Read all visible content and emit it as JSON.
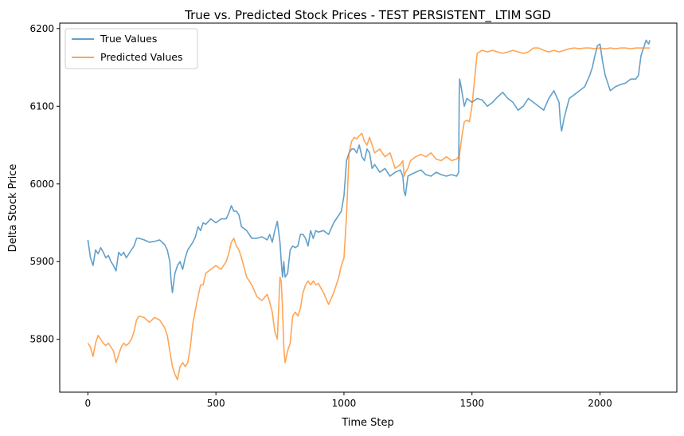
{
  "chart_data": {
    "type": "line",
    "title": "True vs. Predicted Stock Prices - TEST PERSISTENT_ LTIM SGD",
    "xlabel": "Time Step",
    "ylabel": "Delta Stock Price",
    "xlim": [
      -110,
      2300
    ],
    "ylim": [
      5732,
      6207
    ],
    "xticks": [
      0,
      500,
      1000,
      1500,
      2000
    ],
    "yticks": [
      5800,
      5900,
      6000,
      6100,
      6200
    ],
    "grid": false,
    "legend": "top-left",
    "series": [
      {
        "name": "True Values",
        "color": "#1f77b4",
        "x": [
          0,
          10,
          20,
          30,
          40,
          50,
          60,
          70,
          80,
          90,
          100,
          110,
          120,
          130,
          140,
          150,
          160,
          170,
          180,
          190,
          200,
          220,
          240,
          260,
          280,
          300,
          310,
          320,
          325,
          330,
          340,
          350,
          360,
          370,
          380,
          390,
          400,
          410,
          420,
          430,
          440,
          450,
          460,
          480,
          500,
          520,
          540,
          550,
          560,
          570,
          580,
          590,
          600,
          620,
          640,
          660,
          680,
          700,
          710,
          720,
          730,
          740,
          750,
          755,
          760,
          765,
          770,
          780,
          790,
          800,
          810,
          820,
          830,
          840,
          850,
          860,
          870,
          880,
          890,
          900,
          920,
          940,
          960,
          980,
          990,
          1000,
          1010,
          1020,
          1030,
          1040,
          1050,
          1060,
          1070,
          1080,
          1090,
          1100,
          1110,
          1120,
          1140,
          1160,
          1180,
          1200,
          1220,
          1230,
          1235,
          1240,
          1250,
          1260,
          1280,
          1300,
          1320,
          1340,
          1360,
          1380,
          1400,
          1420,
          1440,
          1448,
          1450,
          1452,
          1460,
          1470,
          1480,
          1500,
          1520,
          1540,
          1560,
          1580,
          1600,
          1620,
          1640,
          1660,
          1680,
          1700,
          1720,
          1740,
          1760,
          1780,
          1800,
          1820,
          1840,
          1845,
          1850,
          1860,
          1880,
          1900,
          1920,
          1940,
          1960,
          1970,
          1980,
          1990,
          2000,
          2010,
          2020,
          2040,
          2060,
          2080,
          2100,
          2120,
          2140,
          2150,
          2160,
          2170,
          2180,
          2190,
          2195
        ],
        "y": [
          5928,
          5905,
          5895,
          5915,
          5910,
          5918,
          5912,
          5905,
          5908,
          5900,
          5895,
          5888,
          5912,
          5908,
          5912,
          5905,
          5910,
          5915,
          5920,
          5930,
          5930,
          5928,
          5925,
          5926,
          5928,
          5922,
          5915,
          5900,
          5875,
          5860,
          5885,
          5895,
          5900,
          5890,
          5905,
          5915,
          5920,
          5925,
          5932,
          5945,
          5940,
          5950,
          5948,
          5955,
          5950,
          5955,
          5955,
          5962,
          5972,
          5965,
          5965,
          5960,
          5945,
          5940,
          5930,
          5930,
          5932,
          5928,
          5935,
          5925,
          5940,
          5952,
          5925,
          5900,
          5880,
          5900,
          5880,
          5885,
          5915,
          5920,
          5918,
          5920,
          5935,
          5935,
          5930,
          5920,
          5940,
          5930,
          5940,
          5938,
          5940,
          5935,
          5950,
          5960,
          5965,
          5985,
          6030,
          6040,
          6045,
          6045,
          6040,
          6050,
          6035,
          6030,
          6045,
          6040,
          6020,
          6025,
          6015,
          6020,
          6010,
          6015,
          6018,
          6010,
          5990,
          5985,
          6010,
          6012,
          6015,
          6018,
          6012,
          6010,
          6015,
          6012,
          6010,
          6012,
          6010,
          6015,
          6115,
          6135,
          6120,
          6100,
          6110,
          6105,
          6110,
          6108,
          6100,
          6105,
          6112,
          6118,
          6110,
          6105,
          6095,
          6100,
          6110,
          6105,
          6100,
          6095,
          6110,
          6120,
          6105,
          6080,
          6068,
          6085,
          6110,
          6115,
          6120,
          6125,
          6140,
          6150,
          6165,
          6178,
          6180,
          6158,
          6140,
          6120,
          6125,
          6128,
          6130,
          6135,
          6135,
          6140,
          6165,
          6175,
          6185,
          6180,
          6185
        ]
      },
      {
        "name": "Predicted Values",
        "color": "#ff7f0e",
        "x": [
          0,
          10,
          20,
          30,
          40,
          50,
          60,
          70,
          80,
          90,
          100,
          110,
          120,
          130,
          140,
          150,
          160,
          170,
          180,
          190,
          200,
          220,
          240,
          260,
          280,
          300,
          310,
          320,
          330,
          340,
          350,
          360,
          370,
          380,
          390,
          400,
          410,
          420,
          430,
          440,
          450,
          460,
          480,
          500,
          520,
          540,
          550,
          560,
          570,
          580,
          590,
          600,
          620,
          640,
          660,
          680,
          700,
          710,
          720,
          730,
          740,
          750,
          755,
          760,
          765,
          770,
          780,
          790,
          800,
          810,
          820,
          830,
          840,
          850,
          860,
          870,
          880,
          890,
          900,
          920,
          940,
          960,
          980,
          990,
          1000,
          1010,
          1020,
          1030,
          1040,
          1050,
          1060,
          1070,
          1080,
          1090,
          1100,
          1110,
          1120,
          1140,
          1160,
          1180,
          1200,
          1220,
          1230,
          1235,
          1240,
          1250,
          1260,
          1280,
          1300,
          1320,
          1340,
          1360,
          1380,
          1400,
          1420,
          1440,
          1448,
          1450,
          1452,
          1460,
          1470,
          1480,
          1490,
          1500,
          1520,
          1540,
          1560,
          1580,
          1600,
          1620,
          1640,
          1660,
          1680,
          1700,
          1720,
          1740,
          1760,
          1780,
          1800,
          1820,
          1840,
          1860,
          1880,
          1900,
          1920,
          1940,
          1960,
          1980,
          2000,
          2020,
          2040,
          2060,
          2080,
          2100,
          2120,
          2140,
          2160,
          2180,
          2195
        ],
        "y": [
          5795,
          5790,
          5778,
          5795,
          5805,
          5800,
          5795,
          5792,
          5795,
          5790,
          5785,
          5770,
          5780,
          5790,
          5795,
          5792,
          5795,
          5800,
          5810,
          5825,
          5830,
          5828,
          5822,
          5828,
          5825,
          5815,
          5805,
          5785,
          5765,
          5755,
          5748,
          5765,
          5770,
          5765,
          5770,
          5790,
          5820,
          5838,
          5855,
          5870,
          5870,
          5885,
          5890,
          5895,
          5890,
          5900,
          5910,
          5925,
          5930,
          5920,
          5915,
          5905,
          5880,
          5870,
          5855,
          5850,
          5858,
          5848,
          5835,
          5810,
          5800,
          5880,
          5875,
          5840,
          5790,
          5770,
          5785,
          5795,
          5830,
          5835,
          5830,
          5840,
          5860,
          5870,
          5875,
          5870,
          5875,
          5870,
          5872,
          5860,
          5845,
          5860,
          5880,
          5895,
          5905,
          5960,
          6040,
          6055,
          6060,
          6058,
          6062,
          6065,
          6055,
          6050,
          6060,
          6050,
          6040,
          6045,
          6035,
          6040,
          6020,
          6025,
          6030,
          6010,
          6015,
          6020,
          6030,
          6035,
          6038,
          6035,
          6040,
          6032,
          6030,
          6035,
          6030,
          6032,
          6035,
          6030,
          6040,
          6060,
          6080,
          6082,
          6080,
          6100,
          6168,
          6172,
          6170,
          6172,
          6170,
          6168,
          6170,
          6172,
          6170,
          6168,
          6170,
          6175,
          6175,
          6172,
          6170,
          6172,
          6170,
          6172,
          6174,
          6175,
          6174,
          6175,
          6175,
          6174,
          6175,
          6174,
          6175,
          6174,
          6175,
          6175,
          6174,
          6175,
          6175,
          6175,
          6175
        ]
      }
    ]
  }
}
